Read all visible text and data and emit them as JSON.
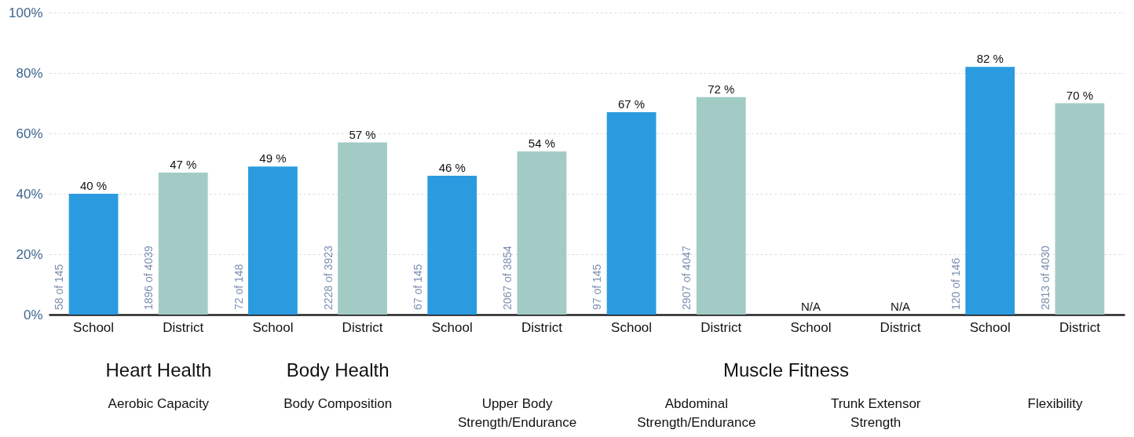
{
  "chart_data": {
    "type": "bar",
    "categories": [
      "School",
      "District",
      "School",
      "District",
      "School",
      "District",
      "School",
      "District",
      "School",
      "District",
      "School",
      "District"
    ],
    "values": [
      40,
      47,
      49,
      57,
      46,
      54,
      67,
      72,
      null,
      null,
      82,
      70
    ],
    "colors": [
      "#2b9be0",
      "#a3cbc6",
      "#2b9be0",
      "#a3cbc6",
      "#2b9be0",
      "#a3cbc6",
      "#2b9be0",
      "#a3cbc6",
      "#2b9be0",
      "#a3cbc6",
      "#2b9be0",
      "#a3cbc6"
    ],
    "value_labels": [
      "40 %",
      "47 %",
      "49 %",
      "57 %",
      "46 %",
      "54 %",
      "67 %",
      "72 %",
      "N/A",
      "N/A",
      "82 %",
      "70 %"
    ],
    "ylim": [
      0,
      100
    ],
    "yticks": [
      {
        "value": 0,
        "label": "0%"
      },
      {
        "value": 20,
        "label": "20%"
      },
      {
        "value": 40,
        "label": "40%"
      },
      {
        "value": 60,
        "label": "60%"
      },
      {
        "value": 80,
        "label": "80%"
      },
      {
        "value": 100,
        "label": "100%"
      }
    ],
    "grid": "y",
    "annotations": [
      "58 of 145",
      "1896 of 4039",
      "72 of 148",
      "2228 of 3923",
      "67 of 145",
      "2067 of 3854",
      "97 of 145",
      "2907 of 4047",
      "120 of 146",
      "2813 of 4030",
      "Heart Health",
      "Body Health",
      "Muscle Fitness",
      "Aerobic Capacity",
      "Body Composition",
      "Upper Body\nStrength/Endurance",
      "Abdominal\nStrength/Endurance",
      "Trunk Extensor\nStrength",
      "Flexibility"
    ]
  }
}
